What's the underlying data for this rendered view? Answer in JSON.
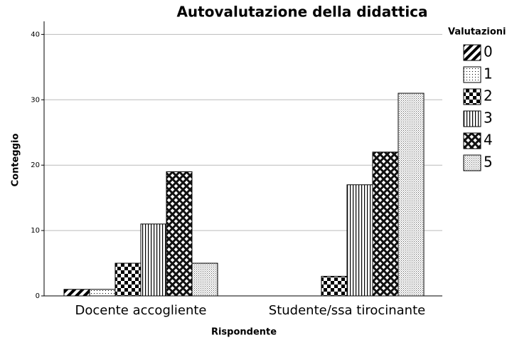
{
  "chart_data": {
    "type": "bar",
    "title": "Autovalutazione della didattica",
    "x_label": "Rispondente",
    "y_label": "Conteggio",
    "legend_title": "Valutazioni",
    "categories": [
      "Docente accogliente",
      "Studente/ssa tirocinante"
    ],
    "series": [
      {
        "name": "0",
        "color": "#000000",
        "pattern": "diagonal",
        "values": [
          1,
          0
        ]
      },
      {
        "name": "1",
        "color": "#000000",
        "pattern": "dots",
        "values": [
          1,
          0
        ]
      },
      {
        "name": "2",
        "color": "#000000",
        "pattern": "checker",
        "values": [
          5,
          3
        ]
      },
      {
        "name": "3",
        "color": "#000000",
        "pattern": "vertical",
        "values": [
          11,
          17
        ]
      },
      {
        "name": "4",
        "color": "#000000",
        "pattern": "crosshatch",
        "values": [
          19,
          22
        ]
      },
      {
        "name": "5",
        "color": "#000000",
        "pattern": "finedots",
        "values": [
          5,
          31
        ]
      }
    ],
    "ylim": [
      0,
      42
    ],
    "yticks": [
      0,
      10,
      20,
      30,
      40
    ],
    "grid": true,
    "legend": "right"
  }
}
